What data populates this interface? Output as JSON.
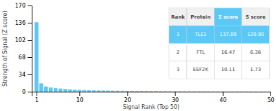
{
  "chart_data": {
    "type": "bar",
    "xlabel": "Signal Rank (Top 50)",
    "ylabel": "Strength of Signal (Z score)",
    "x": [
      1,
      2,
      3,
      4,
      5,
      6,
      7,
      8,
      9,
      10,
      11,
      12,
      13,
      14,
      15,
      16,
      17,
      18,
      19,
      20,
      21,
      22,
      23,
      24,
      25,
      26,
      27,
      28,
      29,
      30,
      31,
      32,
      33,
      34,
      35,
      36,
      37,
      38,
      39,
      40,
      41,
      42,
      43,
      44,
      45,
      46,
      47,
      48,
      49,
      50
    ],
    "values": [
      137.0,
      16.47,
      10.11,
      8.5,
      7.2,
      6.0,
      5.2,
      4.5,
      4.0,
      3.6,
      3.2,
      2.9,
      2.6,
      2.4,
      2.2,
      2.0,
      1.85,
      1.7,
      1.6,
      1.5,
      1.4,
      1.3,
      1.2,
      1.15,
      1.1,
      1.05,
      1.0,
      0.95,
      0.9,
      0.85,
      0.8,
      0.78,
      0.75,
      0.72,
      0.7,
      0.68,
      0.65,
      0.63,
      0.61,
      0.59,
      0.57,
      0.55,
      0.53,
      0.51,
      0.5,
      0.48,
      0.46,
      0.44,
      0.42,
      0.4
    ],
    "color": "#5bc8f5",
    "xlim": [
      0,
      50
    ],
    "xticks": [
      1,
      10,
      20,
      30,
      40,
      50
    ],
    "ylim": [
      0,
      170
    ],
    "yticks": [
      0,
      34,
      68,
      102,
      136,
      170
    ],
    "table": {
      "headers": [
        "Rank",
        "Protein",
        "Z score",
        "S score"
      ],
      "rows": [
        [
          "1",
          "TLE1",
          "137.00",
          "120.90"
        ],
        [
          "2",
          "FTL",
          "16.47",
          "6.36"
        ],
        [
          "3",
          "EEF2K",
          "10.11",
          "1.73"
        ]
      ]
    }
  }
}
